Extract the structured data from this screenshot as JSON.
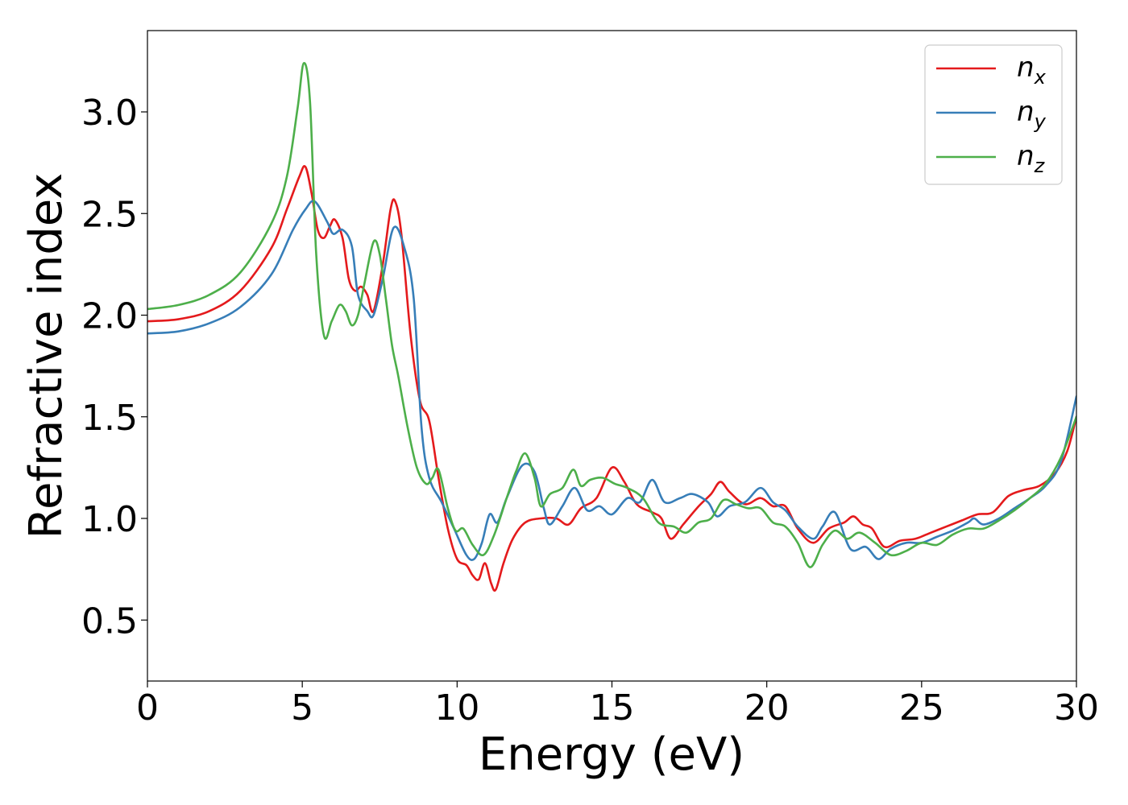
{
  "chart_data": {
    "type": "line",
    "xlabel": "Energy (eV)",
    "ylabel": "Refractive index",
    "xlim": [
      0,
      30
    ],
    "ylim": [
      0.2,
      3.4
    ],
    "xticks": [
      0,
      5,
      10,
      15,
      20,
      25,
      30
    ],
    "xtick_labels": [
      "0",
      "5",
      "10",
      "15",
      "20",
      "25",
      "30"
    ],
    "yticks": [
      0.5,
      1.0,
      1.5,
      2.0,
      2.5,
      3.0
    ],
    "ytick_labels": [
      "0.5",
      "1.0",
      "1.5",
      "2.0",
      "2.5",
      "3.0"
    ],
    "grid": false,
    "legend_position": "top-right",
    "series": [
      {
        "name": "n_x",
        "label_main": "n",
        "label_sub": "x",
        "color": "#e41a1c",
        "points": [
          [
            0,
            1.97
          ],
          [
            1,
            1.98
          ],
          [
            2,
            2.02
          ],
          [
            3,
            2.12
          ],
          [
            4,
            2.33
          ],
          [
            4.5,
            2.52
          ],
          [
            4.9,
            2.68
          ],
          [
            5.1,
            2.73
          ],
          [
            5.3,
            2.6
          ],
          [
            5.5,
            2.42
          ],
          [
            5.7,
            2.38
          ],
          [
            5.9,
            2.44
          ],
          [
            6.05,
            2.47
          ],
          [
            6.3,
            2.38
          ],
          [
            6.5,
            2.18
          ],
          [
            6.7,
            2.12
          ],
          [
            6.9,
            2.14
          ],
          [
            7.1,
            2.1
          ],
          [
            7.3,
            2.02
          ],
          [
            7.6,
            2.25
          ],
          [
            7.85,
            2.52
          ],
          [
            8.0,
            2.56
          ],
          [
            8.2,
            2.4
          ],
          [
            8.5,
            1.9
          ],
          [
            8.8,
            1.58
          ],
          [
            9.1,
            1.48
          ],
          [
            9.4,
            1.2
          ],
          [
            9.7,
            0.95
          ],
          [
            10.0,
            0.8
          ],
          [
            10.3,
            0.77
          ],
          [
            10.5,
            0.72
          ],
          [
            10.7,
            0.7
          ],
          [
            10.9,
            0.78
          ],
          [
            11.1,
            0.68
          ],
          [
            11.25,
            0.65
          ],
          [
            11.5,
            0.78
          ],
          [
            11.8,
            0.9
          ],
          [
            12.2,
            0.98
          ],
          [
            12.7,
            1.0
          ],
          [
            13.2,
            1.0
          ],
          [
            13.6,
            0.97
          ],
          [
            14.0,
            1.05
          ],
          [
            14.5,
            1.1
          ],
          [
            15.0,
            1.25
          ],
          [
            15.4,
            1.18
          ],
          [
            15.8,
            1.07
          ],
          [
            16.3,
            1.03
          ],
          [
            16.6,
            1.0
          ],
          [
            16.9,
            0.9
          ],
          [
            17.3,
            0.97
          ],
          [
            17.8,
            1.06
          ],
          [
            18.2,
            1.12
          ],
          [
            18.5,
            1.18
          ],
          [
            18.8,
            1.13
          ],
          [
            19.3,
            1.07
          ],
          [
            19.8,
            1.1
          ],
          [
            20.2,
            1.06
          ],
          [
            20.6,
            1.06
          ],
          [
            21.0,
            0.95
          ],
          [
            21.5,
            0.88
          ],
          [
            22.0,
            0.95
          ],
          [
            22.5,
            0.98
          ],
          [
            22.8,
            1.01
          ],
          [
            23.1,
            0.97
          ],
          [
            23.4,
            0.95
          ],
          [
            23.8,
            0.86
          ],
          [
            24.3,
            0.89
          ],
          [
            24.8,
            0.9
          ],
          [
            25.3,
            0.93
          ],
          [
            25.8,
            0.96
          ],
          [
            26.3,
            0.99
          ],
          [
            26.8,
            1.02
          ],
          [
            27.3,
            1.03
          ],
          [
            27.8,
            1.11
          ],
          [
            28.3,
            1.14
          ],
          [
            28.8,
            1.16
          ],
          [
            29.3,
            1.22
          ],
          [
            29.7,
            1.33
          ],
          [
            30.0,
            1.5
          ]
        ]
      },
      {
        "name": "n_y",
        "label_main": "n",
        "label_sub": "y",
        "color": "#377eb8",
        "points": [
          [
            0,
            1.91
          ],
          [
            1,
            1.92
          ],
          [
            2,
            1.96
          ],
          [
            3,
            2.04
          ],
          [
            4,
            2.2
          ],
          [
            4.7,
            2.42
          ],
          [
            5.1,
            2.52
          ],
          [
            5.4,
            2.56
          ],
          [
            5.8,
            2.46
          ],
          [
            6.0,
            2.4
          ],
          [
            6.3,
            2.42
          ],
          [
            6.6,
            2.34
          ],
          [
            6.8,
            2.1
          ],
          [
            7.1,
            2.02
          ],
          [
            7.3,
            2.0
          ],
          [
            7.6,
            2.18
          ],
          [
            7.95,
            2.43
          ],
          [
            8.3,
            2.33
          ],
          [
            8.6,
            2.08
          ],
          [
            8.85,
            1.45
          ],
          [
            9.1,
            1.2
          ],
          [
            9.5,
            1.08
          ],
          [
            9.9,
            0.95
          ],
          [
            10.3,
            0.82
          ],
          [
            10.55,
            0.8
          ],
          [
            10.8,
            0.88
          ],
          [
            11.05,
            1.02
          ],
          [
            11.3,
            0.98
          ],
          [
            11.6,
            1.1
          ],
          [
            12.1,
            1.26
          ],
          [
            12.5,
            1.23
          ],
          [
            12.8,
            1.05
          ],
          [
            13.0,
            0.97
          ],
          [
            13.4,
            1.06
          ],
          [
            13.8,
            1.15
          ],
          [
            14.2,
            1.04
          ],
          [
            14.6,
            1.06
          ],
          [
            15.0,
            1.02
          ],
          [
            15.5,
            1.1
          ],
          [
            15.9,
            1.08
          ],
          [
            16.3,
            1.19
          ],
          [
            16.7,
            1.08
          ],
          [
            17.2,
            1.1
          ],
          [
            17.6,
            1.12
          ],
          [
            18.1,
            1.08
          ],
          [
            18.4,
            1.01
          ],
          [
            18.8,
            1.06
          ],
          [
            19.3,
            1.08
          ],
          [
            19.8,
            1.15
          ],
          [
            20.2,
            1.08
          ],
          [
            20.6,
            1.04
          ],
          [
            21.0,
            0.96
          ],
          [
            21.5,
            0.9
          ],
          [
            21.8,
            0.96
          ],
          [
            22.2,
            1.03
          ],
          [
            22.7,
            0.85
          ],
          [
            23.2,
            0.86
          ],
          [
            23.6,
            0.8
          ],
          [
            24.0,
            0.85
          ],
          [
            24.5,
            0.88
          ],
          [
            25.0,
            0.88
          ],
          [
            25.5,
            0.91
          ],
          [
            26.0,
            0.94
          ],
          [
            26.5,
            0.98
          ],
          [
            26.7,
            1.0
          ],
          [
            27.0,
            0.97
          ],
          [
            27.5,
            1.0
          ],
          [
            28.0,
            1.05
          ],
          [
            28.5,
            1.1
          ],
          [
            29.0,
            1.16
          ],
          [
            29.5,
            1.28
          ],
          [
            30.0,
            1.6
          ]
        ]
      },
      {
        "name": "n_z",
        "label_main": "n",
        "label_sub": "z",
        "color": "#4daf4a",
        "points": [
          [
            0,
            2.03
          ],
          [
            1,
            2.05
          ],
          [
            2,
            2.1
          ],
          [
            3,
            2.21
          ],
          [
            4,
            2.45
          ],
          [
            4.5,
            2.68
          ],
          [
            4.85,
            3.02
          ],
          [
            5.05,
            3.24
          ],
          [
            5.25,
            3.05
          ],
          [
            5.45,
            2.3
          ],
          [
            5.7,
            1.9
          ],
          [
            5.95,
            1.97
          ],
          [
            6.2,
            2.05
          ],
          [
            6.4,
            2.02
          ],
          [
            6.6,
            1.95
          ],
          [
            6.8,
            2.0
          ],
          [
            7.0,
            2.15
          ],
          [
            7.3,
            2.36
          ],
          [
            7.5,
            2.3
          ],
          [
            7.7,
            2.08
          ],
          [
            7.9,
            1.85
          ],
          [
            8.1,
            1.7
          ],
          [
            8.4,
            1.45
          ],
          [
            8.7,
            1.25
          ],
          [
            9.0,
            1.17
          ],
          [
            9.2,
            1.2
          ],
          [
            9.4,
            1.24
          ],
          [
            9.7,
            1.05
          ],
          [
            9.95,
            0.94
          ],
          [
            10.2,
            0.95
          ],
          [
            10.5,
            0.87
          ],
          [
            10.85,
            0.82
          ],
          [
            11.2,
            0.92
          ],
          [
            11.6,
            1.1
          ],
          [
            11.9,
            1.23
          ],
          [
            12.2,
            1.32
          ],
          [
            12.5,
            1.2
          ],
          [
            12.7,
            1.06
          ],
          [
            13.0,
            1.12
          ],
          [
            13.4,
            1.15
          ],
          [
            13.75,
            1.24
          ],
          [
            14.0,
            1.16
          ],
          [
            14.3,
            1.19
          ],
          [
            14.7,
            1.2
          ],
          [
            15.1,
            1.17
          ],
          [
            15.5,
            1.15
          ],
          [
            16.0,
            1.1
          ],
          [
            16.5,
            0.98
          ],
          [
            17.0,
            0.96
          ],
          [
            17.4,
            0.93
          ],
          [
            17.8,
            0.98
          ],
          [
            18.2,
            1.0
          ],
          [
            18.6,
            1.09
          ],
          [
            19.0,
            1.07
          ],
          [
            19.4,
            1.05
          ],
          [
            19.8,
            1.05
          ],
          [
            20.2,
            0.98
          ],
          [
            20.6,
            0.96
          ],
          [
            21.0,
            0.88
          ],
          [
            21.4,
            0.76
          ],
          [
            21.8,
            0.87
          ],
          [
            22.2,
            0.94
          ],
          [
            22.6,
            0.9
          ],
          [
            23.0,
            0.93
          ],
          [
            23.5,
            0.88
          ],
          [
            24.0,
            0.82
          ],
          [
            24.5,
            0.84
          ],
          [
            25.0,
            0.88
          ],
          [
            25.5,
            0.87
          ],
          [
            26.0,
            0.92
          ],
          [
            26.5,
            0.95
          ],
          [
            27.0,
            0.95
          ],
          [
            27.5,
            0.99
          ],
          [
            28.0,
            1.04
          ],
          [
            28.5,
            1.1
          ],
          [
            29.0,
            1.17
          ],
          [
            29.5,
            1.3
          ],
          [
            30.0,
            1.5
          ]
        ]
      }
    ]
  }
}
